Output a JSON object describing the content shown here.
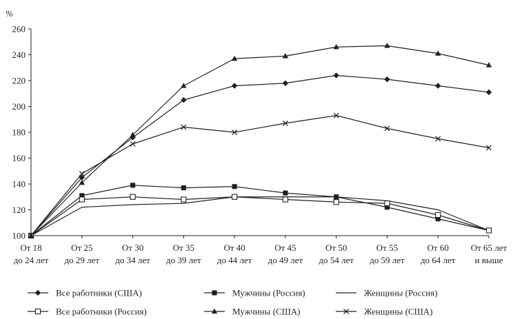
{
  "chart_data": {
    "type": "line",
    "y_unit": "%",
    "ylim": [
      100,
      260
    ],
    "yticks": [
      100,
      120,
      140,
      160,
      180,
      200,
      220,
      240,
      260
    ],
    "grid": false,
    "legend_position": "bottom",
    "categories": [
      [
        "От 18",
        "до 24 лет"
      ],
      [
        "От 25",
        "до 29 лет"
      ],
      [
        "От 30",
        "до 34 лет"
      ],
      [
        "От 35",
        "до 39 лет"
      ],
      [
        "От 40",
        "до 44 лет"
      ],
      [
        "От 45",
        "до 49 лет"
      ],
      [
        "От 50",
        "до 54 лет"
      ],
      [
        "От 55",
        "до 59 лет"
      ],
      [
        "От 60",
        "до 64 лет"
      ],
      [
        "От 65 лет",
        "и выше"
      ]
    ],
    "series": [
      {
        "name": "Все работники (США)",
        "marker": "diamond",
        "values": [
          100,
          145,
          176,
          205,
          216,
          218,
          224,
          221,
          216,
          211
        ]
      },
      {
        "name": "Мужчины (Россия)",
        "marker": "square",
        "values": [
          100,
          131,
          139,
          137,
          138,
          133,
          130,
          122,
          113,
          104
        ]
      },
      {
        "name": "Женщины (Россия)",
        "marker": "none",
        "values": [
          100,
          122,
          124,
          125,
          130,
          130,
          130,
          127,
          120,
          104
        ]
      },
      {
        "name": "Все работники (Россия)",
        "marker": "open-square",
        "values": [
          100,
          128,
          130,
          128,
          130,
          128,
          126,
          125,
          116,
          104
        ]
      },
      {
        "name": "Мужчины (США)",
        "marker": "triangle",
        "values": [
          100,
          141,
          178,
          216,
          237,
          239,
          246,
          247,
          241,
          232
        ]
      },
      {
        "name": "Женщины (США)",
        "marker": "x",
        "values": [
          100,
          148,
          171,
          184,
          180,
          187,
          193,
          183,
          175,
          168
        ]
      }
    ]
  }
}
